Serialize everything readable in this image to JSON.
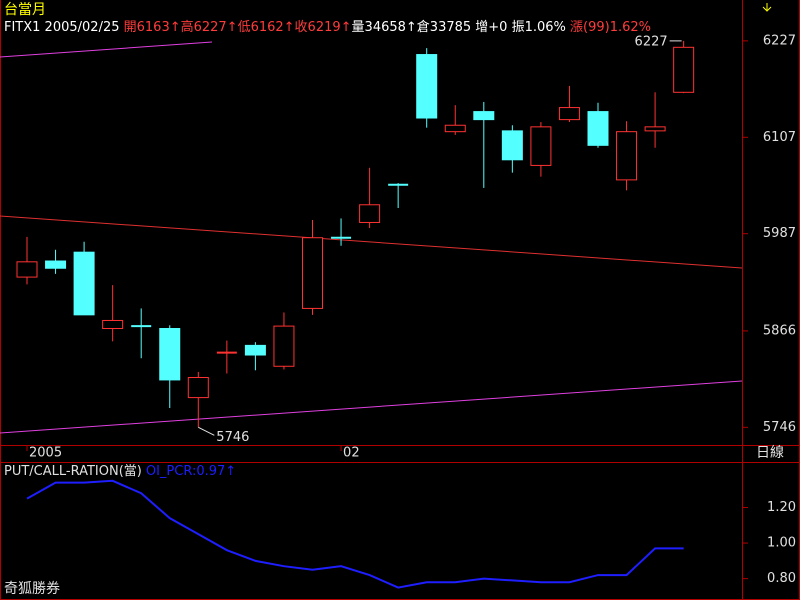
{
  "app_title": "台當月",
  "header": [
    {
      "text": "FITX1 2005/02/25 ",
      "color": "#ffffff"
    },
    {
      "text": "開6163↑高6227↑低6162↑收6219↑",
      "color": "#ff3c3c"
    },
    {
      "text": "量34658↑倉33785 增+0 振1.06% ",
      "color": "#ffffff"
    },
    {
      "text": "漲(99)1.62%",
      "color": "#ff3c3c"
    }
  ],
  "period_label": "日線",
  "brand": "奇狐勝券",
  "chart_data": [
    {
      "type": "candlestick",
      "categories": [
        "2005",
        null,
        null,
        null,
        null,
        null,
        null,
        null,
        null,
        null,
        null,
        "02",
        null,
        null,
        null,
        null,
        null,
        null,
        null,
        null,
        null,
        null,
        null,
        null
      ],
      "open": [
        5933,
        5953,
        5964,
        5869,
        5872,
        5869,
        5783,
        5839,
        5848,
        5822,
        5894,
        5982,
        6001,
        6048,
        6210,
        6114,
        6139,
        6115,
        6072,
        6129,
        6139,
        6054,
        6115,
        6163
      ],
      "high": [
        5983,
        5967,
        5977,
        5923,
        5894,
        5873,
        5815,
        5854,
        5852,
        5889,
        6004,
        6006,
        6069,
        6050,
        6218,
        6147,
        6151,
        6122,
        6126,
        6171,
        6150,
        6127,
        6163,
        6227
      ],
      "low": [
        5924,
        5937,
        5886,
        5853,
        5832,
        5770,
        5746,
        5813,
        5817,
        5818,
        5886,
        5972,
        5994,
        6019,
        6119,
        6110,
        6044,
        6063,
        6058,
        6126,
        6094,
        6041,
        6094,
        6162
      ],
      "close": [
        5952,
        5944,
        5886,
        5879,
        5871,
        5805,
        5808,
        5840,
        5836,
        5872,
        5982,
        5981,
        6023,
        6047,
        6131,
        6122,
        6129,
        6079,
        6120,
        6144,
        6097,
        6114,
        6120,
        6219
      ],
      "up_color": "#ff3232",
      "down_color": "#54ffff",
      "ylim": [
        5724,
        6253
      ],
      "yticks": [
        5746,
        5866,
        5987,
        6107,
        6227
      ]
    },
    {
      "type": "line",
      "title": "PUT/CALL-RATION(當)",
      "legend": "OI_PCR:0.97↑",
      "color": "#1e1eff",
      "values": [
        1.25,
        1.34,
        1.34,
        1.35,
        1.28,
        1.14,
        1.05,
        0.96,
        0.9,
        0.87,
        0.85,
        0.87,
        0.82,
        0.75,
        0.78,
        0.78,
        0.8,
        0.79,
        0.78,
        0.78,
        0.82,
        0.82,
        0.97,
        0.97
      ],
      "ylim": [
        0.68,
        1.45
      ],
      "yticks": [
        {
          "value": 0.8,
          "label": "0.80"
        },
        {
          "value": 1,
          "label": "1.00"
        },
        {
          "value": 1.2,
          "label": "1.20"
        }
      ]
    }
  ]
}
